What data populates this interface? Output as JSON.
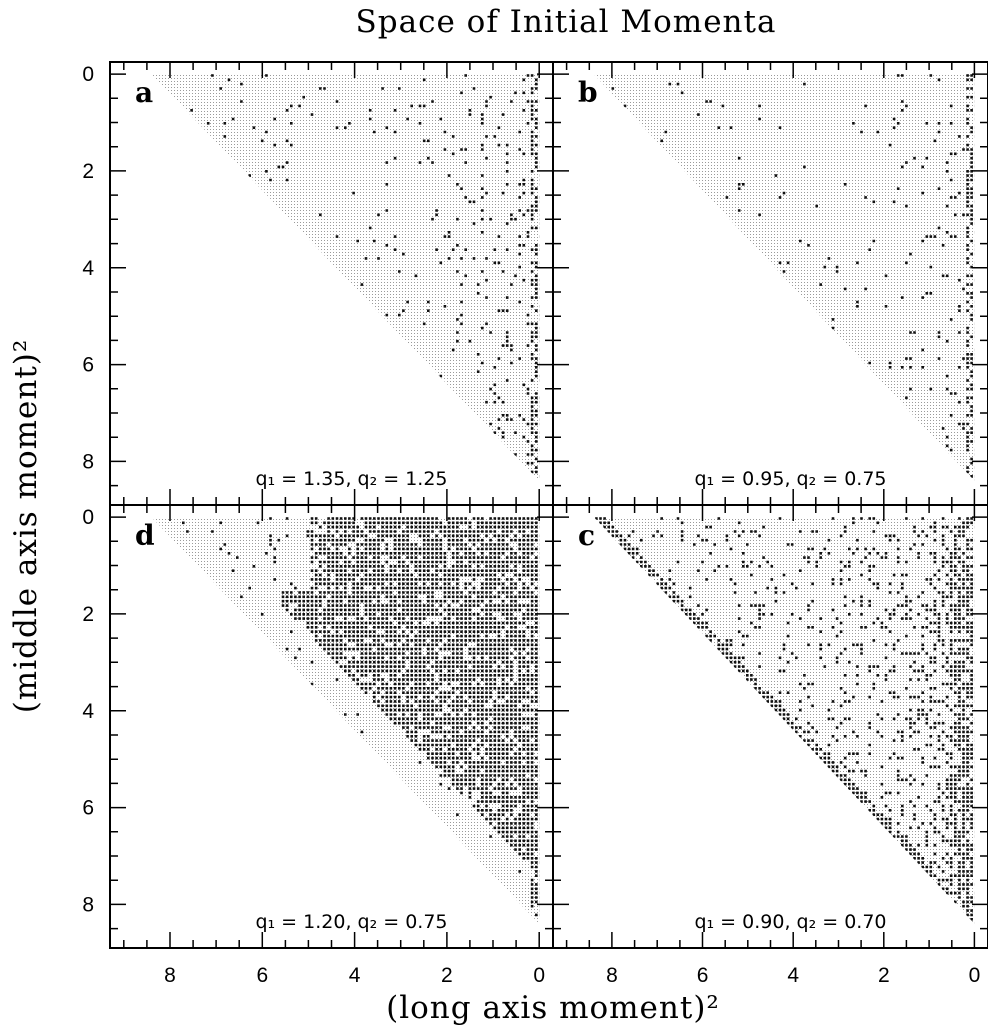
{
  "title": "Space of Initial Momenta",
  "xlabel": "(long axis moment)²",
  "ylabel": "(middle axis moment)²",
  "chart_data": [
    {
      "type": "heatmap",
      "panel": "a",
      "annotation": "q₁ = 1.35, q₂ = 1.25",
      "xlim": [
        9.3,
        -0.3
      ],
      "ylim": [
        -0.25,
        8.9
      ],
      "x_axis_reversed": true,
      "y_axis_reversed": true,
      "x_ticks": [
        8,
        6,
        4,
        2,
        0
      ],
      "y_ticks": [
        0,
        2,
        4,
        6,
        8
      ],
      "region": "triangle with vertices (8.4, 0), (0, 0), (0, 8.4)",
      "dark_density": "low"
    },
    {
      "type": "heatmap",
      "panel": "b",
      "annotation": "q₁ = 0.95, q₂ = 0.75",
      "xlim": [
        9.3,
        -0.3
      ],
      "ylim": [
        -0.25,
        8.9
      ],
      "x_axis_reversed": true,
      "y_axis_reversed": true,
      "x_ticks": [
        8,
        6,
        4,
        2,
        0
      ],
      "y_ticks": [
        0,
        2,
        4,
        6,
        8
      ],
      "region": "triangle with vertices (8.4, 0), (0, 0), (0, 8.4)",
      "dark_density": "very low"
    },
    {
      "type": "heatmap",
      "panel": "d",
      "annotation": "q₁ = 1.20, q₂ = 0.75",
      "xlim": [
        9.3,
        -0.3
      ],
      "ylim": [
        -0.25,
        8.9
      ],
      "x_axis_reversed": true,
      "y_axis_reversed": true,
      "x_ticks": [
        8,
        6,
        4,
        2,
        0
      ],
      "y_ticks": [
        0,
        2,
        4,
        6,
        8
      ],
      "region": "triangle with vertices (8.4, 0), (0, 0), (0, 8.4)",
      "dark_density": "high"
    },
    {
      "type": "heatmap",
      "panel": "c",
      "annotation": "q₁ = 0.90, q₂ = 0.70",
      "xlim": [
        9.3,
        -0.3
      ],
      "ylim": [
        -0.25,
        8.9
      ],
      "x_axis_reversed": true,
      "y_axis_reversed": true,
      "x_ticks": [
        8,
        6,
        4,
        2,
        0
      ],
      "y_ticks": [
        0,
        2,
        4,
        6,
        8
      ],
      "region": "triangle with vertices (8.4, 0), (0, 0), (0, 8.4)",
      "dark_density": "medium"
    }
  ]
}
